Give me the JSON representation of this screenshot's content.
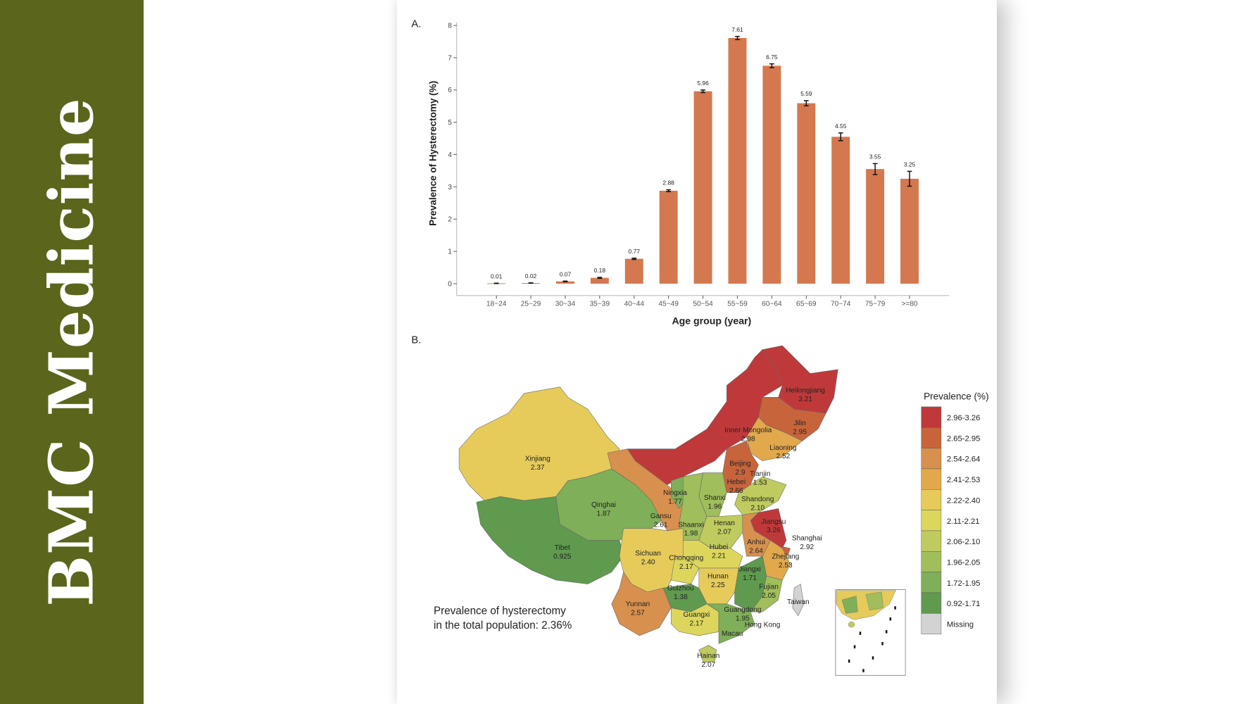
{
  "brand": {
    "title": "BMC Medicine",
    "color": "#5b651b"
  },
  "panel_a_label": "A.",
  "panel_b_label": "B.",
  "chart_data": [
    {
      "type": "bar",
      "title": "",
      "xlabel": "Age group (year)",
      "ylabel": "Prevalence of Hysterectomy (%)",
      "ylim": [
        0,
        8
      ],
      "yticks": [
        "0",
        "1",
        "2",
        "3",
        "4",
        "5",
        "6",
        "7",
        "8"
      ],
      "grid": false,
      "color": "#d4784f",
      "categories": [
        "18~24",
        "25~29",
        "30~34",
        "35~39",
        "40~44",
        "45~49",
        "50~54",
        "55~59",
        "60~64",
        "65~69",
        "70~74",
        "75~79",
        ">=80"
      ],
      "values": [
        0.01,
        0.02,
        0.07,
        0.18,
        0.77,
        2.88,
        5.96,
        7.61,
        6.75,
        5.59,
        4.55,
        3.55,
        3.25
      ],
      "value_labels": [
        "0.01",
        "0.02",
        "0.07",
        "0.18",
        "0.77",
        "2.88",
        "5.96",
        "7.61",
        "6.75",
        "5.59",
        "4.55",
        "3.55",
        "3.25"
      ],
      "error": [
        0.005,
        0.005,
        0.01,
        0.015,
        0.02,
        0.03,
        0.04,
        0.05,
        0.06,
        0.08,
        0.12,
        0.17,
        0.23
      ]
    },
    {
      "type": "choropleth",
      "legend_title": "Prevalence (%)",
      "legend_placement": "right",
      "bins": [
        {
          "label": "2.96-3.26",
          "min": 2.96,
          "max": 3.26,
          "color": "#c0393a"
        },
        {
          "label": "2.65-2.95",
          "min": 2.65,
          "max": 2.95,
          "color": "#c8643c"
        },
        {
          "label": "2.54-2.64",
          "min": 2.54,
          "max": 2.64,
          "color": "#d8904e"
        },
        {
          "label": "2.41-2.53",
          "min": 2.41,
          "max": 2.53,
          "color": "#e2a84c"
        },
        {
          "label": "2.22-2.40",
          "min": 2.22,
          "max": 2.4,
          "color": "#e6cb5a"
        },
        {
          "label": "2.11-2.21",
          "min": 2.11,
          "max": 2.21,
          "color": "#dcd75c"
        },
        {
          "label": "2.06-2.10",
          "min": 2.06,
          "max": 2.1,
          "color": "#bfcb5e"
        },
        {
          "label": "1.96-2.05",
          "min": 1.96,
          "max": 2.05,
          "color": "#a0be5c"
        },
        {
          "label": "1.72-1.95",
          "min": 1.72,
          "max": 1.95,
          "color": "#7faf58"
        },
        {
          "label": "0.92-1.71",
          "min": 0.92,
          "max": 1.71,
          "color": "#5f9a4e"
        },
        {
          "label": "Missing",
          "min": null,
          "max": null,
          "color": "#d3d3d3"
        }
      ],
      "regions": [
        {
          "name": "Xinjiang",
          "value": "2.37"
        },
        {
          "name": "Tibet",
          "value": "0.925"
        },
        {
          "name": "Qinghai",
          "value": "1.87"
        },
        {
          "name": "Gansu",
          "value": "2.61"
        },
        {
          "name": "Inner Mongolia",
          "value": "2.98"
        },
        {
          "name": "Heilongjiang",
          "value": "3.21"
        },
        {
          "name": "Jilin",
          "value": "2.95"
        },
        {
          "name": "Liaoning",
          "value": "2.52"
        },
        {
          "name": "Beijing",
          "value": "2.9"
        },
        {
          "name": "Tianjin",
          "value": "1.53"
        },
        {
          "name": "Hebei",
          "value": "2.66"
        },
        {
          "name": "Ningxia",
          "value": "1.77"
        },
        {
          "name": "Shanxi",
          "value": "1.96"
        },
        {
          "name": "Shandong",
          "value": "2.10"
        },
        {
          "name": "Shaanxi",
          "value": "1.98"
        },
        {
          "name": "Henan",
          "value": "2.07"
        },
        {
          "name": "Jiangsu",
          "value": "3.26"
        },
        {
          "name": "Anhui",
          "value": "2.64"
        },
        {
          "name": "Shanghai",
          "value": "2.92"
        },
        {
          "name": "Hubei",
          "value": "2.21"
        },
        {
          "name": "Sichuan",
          "value": "2.40"
        },
        {
          "name": "Chongqing",
          "value": "2.17"
        },
        {
          "name": "Zhejiang",
          "value": "2.53"
        },
        {
          "name": "Jiangxi",
          "value": "1.71"
        },
        {
          "name": "Hunan",
          "value": "2.25"
        },
        {
          "name": "Fujian",
          "value": "2.05"
        },
        {
          "name": "Guizhou",
          "value": "1.38"
        },
        {
          "name": "Yunnan",
          "value": "2.57"
        },
        {
          "name": "Guangxi",
          "value": "2.17"
        },
        {
          "name": "Guangdong",
          "value": "1.95"
        },
        {
          "name": "Hainan",
          "value": "2.07"
        },
        {
          "name": "Taiwan",
          "value": ""
        },
        {
          "name": "Hong Kong",
          "value": ""
        },
        {
          "name": "Macau",
          "value": ""
        }
      ],
      "note_line1": "Prevalence of hysterectomy",
      "note_line2": "in the total population: 2.36%"
    }
  ]
}
